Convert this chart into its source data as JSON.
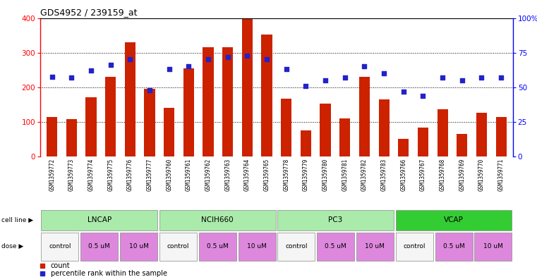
{
  "title": "GDS4952 / 239159_at",
  "gsm_labels": [
    "GSM1359772",
    "GSM1359773",
    "GSM1359774",
    "GSM1359775",
    "GSM1359776",
    "GSM1359777",
    "GSM1359760",
    "GSM1359761",
    "GSM1359762",
    "GSM1359763",
    "GSM1359764",
    "GSM1359765",
    "GSM1359778",
    "GSM1359779",
    "GSM1359780",
    "GSM1359781",
    "GSM1359782",
    "GSM1359783",
    "GSM1359766",
    "GSM1359767",
    "GSM1359768",
    "GSM1359769",
    "GSM1359770",
    "GSM1359771"
  ],
  "bar_values": [
    115,
    108,
    172,
    230,
    330,
    195,
    140,
    255,
    315,
    315,
    400,
    352,
    167,
    75,
    152,
    110,
    230,
    165,
    50,
    83,
    137,
    65,
    127,
    115
  ],
  "percentile_values": [
    57.5,
    57,
    62,
    66,
    70,
    48,
    63,
    65,
    70,
    72,
    73,
    70,
    63,
    51,
    55,
    57,
    65,
    60,
    47,
    44,
    57,
    55,
    57,
    57
  ],
  "cell_lines": [
    {
      "name": "LNCAP",
      "start": 0,
      "end": 6
    },
    {
      "name": "NCIH660",
      "start": 6,
      "end": 12
    },
    {
      "name": "PC3",
      "start": 12,
      "end": 18
    },
    {
      "name": "VCAP",
      "start": 18,
      "end": 24
    }
  ],
  "dose_groups": [
    {
      "name": "control",
      "start": 0,
      "end": 2
    },
    {
      "name": "0.5 uM",
      "start": 2,
      "end": 4
    },
    {
      "name": "10 uM",
      "start": 4,
      "end": 6
    },
    {
      "name": "control",
      "start": 6,
      "end": 8
    },
    {
      "name": "0.5 uM",
      "start": 8,
      "end": 10
    },
    {
      "name": "10 uM",
      "start": 10,
      "end": 12
    },
    {
      "name": "control",
      "start": 12,
      "end": 14
    },
    {
      "name": "0.5 uM",
      "start": 14,
      "end": 16
    },
    {
      "name": "10 uM",
      "start": 16,
      "end": 18
    },
    {
      "name": "control",
      "start": 18,
      "end": 20
    },
    {
      "name": "0.5 uM",
      "start": 20,
      "end": 22
    },
    {
      "name": "10 uM",
      "start": 22,
      "end": 24
    }
  ],
  "bar_color": "#CC2200",
  "dot_color": "#2222CC",
  "cell_line_color_light": "#aaeaaa",
  "cell_line_color_dark": "#33cc33",
  "dose_control_color": "#f5f5f5",
  "dose_active_color": "#dd88dd",
  "left_ylim": [
    0,
    400
  ],
  "right_ylim": [
    0,
    100
  ],
  "left_yticks": [
    0,
    100,
    200,
    300,
    400
  ],
  "right_yticks": [
    0,
    25,
    50,
    75,
    100
  ],
  "right_yticklabels": [
    "0",
    "25",
    "50",
    "75",
    "100%"
  ],
  "grid_lines": [
    100,
    200,
    300
  ],
  "background_color": "#ffffff"
}
